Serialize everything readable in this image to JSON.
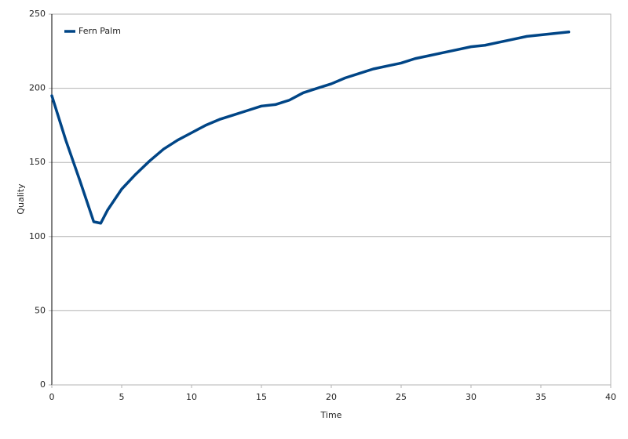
{
  "chart_data": {
    "type": "line",
    "x_label": "Time",
    "y_label": "Quality",
    "x": [
      0,
      1,
      2,
      3,
      3.5,
      4,
      5,
      6,
      7,
      8,
      9,
      10,
      11,
      12,
      13,
      14,
      15,
      16,
      17,
      18,
      19,
      20,
      21,
      22,
      23,
      24,
      25,
      26,
      27,
      28,
      29,
      30,
      31,
      32,
      33,
      34,
      35,
      36,
      37
    ],
    "series": [
      {
        "name": "Fern Palm",
        "color": "#004586",
        "values": [
          195,
          165,
          138,
          110,
          109,
          118,
          132,
          142,
          151,
          159,
          165,
          170,
          175,
          179,
          182,
          185,
          188,
          189,
          192,
          197,
          200,
          203,
          207,
          210,
          213,
          215,
          217,
          220,
          222,
          224,
          226,
          228,
          229,
          231,
          233,
          235,
          236,
          237,
          238
        ]
      }
    ],
    "xlim": [
      0,
      40
    ],
    "xticks": [
      0,
      5,
      10,
      15,
      20,
      25,
      30,
      35,
      40
    ],
    "ylim": [
      0,
      250
    ],
    "yticks": [
      0,
      50,
      100,
      150,
      200,
      250
    ],
    "grid": true,
    "legend": "top-left"
  }
}
